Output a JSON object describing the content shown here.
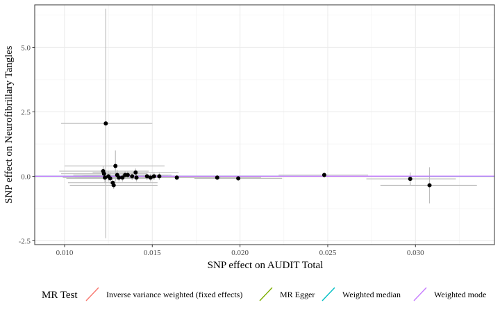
{
  "chart_data": {
    "type": "scatter",
    "xlabel": "SNP effect on AUDIT Total",
    "ylabel": "SNP effect on Neurofibrillary Tangles",
    "xlim": [
      0.0083,
      0.0345
    ],
    "ylim": [
      -2.65,
      6.65
    ],
    "x_ticks": [
      0.01,
      0.015,
      0.02,
      0.025,
      0.03
    ],
    "x_tick_labels": [
      "0.010",
      "0.015",
      "0.020",
      "0.025",
      "0.030"
    ],
    "y_ticks": [
      -2.5,
      0.0,
      2.5,
      5.0
    ],
    "y_tick_labels": [
      "-2.5",
      "0.0",
      "2.5",
      "5.0"
    ],
    "grid": true,
    "legend_position": "bottom",
    "legend_title": "MR Test",
    "points": [
      {
        "x": 0.01235,
        "y": 2.05,
        "x_lo": 0.0098,
        "x_hi": 0.015,
        "y_lo": -2.4,
        "y_hi": 6.5
      },
      {
        "x": 0.0129,
        "y": 0.4,
        "x_lo": 0.01,
        "x_hi": 0.0157,
        "y_lo": -0.2,
        "y_hi": 1.0
      },
      {
        "x": 0.0122,
        "y": 0.2,
        "x_lo": 0.0097,
        "x_hi": 0.0148,
        "y_lo": 0.0,
        "y_hi": 0.4
      },
      {
        "x": 0.01225,
        "y": 0.1,
        "x_lo": 0.0098,
        "x_hi": 0.0147,
        "y_lo": -0.1,
        "y_hi": 0.3
      },
      {
        "x": 0.0123,
        "y": -0.05,
        "x_lo": 0.0099,
        "x_hi": 0.0147,
        "y_lo": -0.25,
        "y_hi": 0.15
      },
      {
        "x": 0.0125,
        "y": 0.0,
        "x_lo": 0.01,
        "x_hi": 0.015,
        "y_lo": -0.2,
        "y_hi": 0.2
      },
      {
        "x": 0.0126,
        "y": -0.08,
        "x_lo": 0.0101,
        "x_hi": 0.0151,
        "y_lo": -0.3,
        "y_hi": 0.14
      },
      {
        "x": 0.01275,
        "y": -0.25,
        "x_lo": 0.0102,
        "x_hi": 0.0153,
        "y_lo": -0.4,
        "y_hi": -0.1
      },
      {
        "x": 0.0128,
        "y": -0.35,
        "x_lo": 0.0103,
        "x_hi": 0.0153,
        "y_lo": -0.5,
        "y_hi": -0.2
      },
      {
        "x": 0.013,
        "y": 0.05,
        "x_lo": 0.0105,
        "x_hi": 0.0155,
        "y_lo": -0.15,
        "y_hi": 0.25
      },
      {
        "x": 0.0131,
        "y": -0.05,
        "x_lo": 0.0106,
        "x_hi": 0.0156,
        "y_lo": -0.2,
        "y_hi": 0.1
      },
      {
        "x": 0.0133,
        "y": -0.05,
        "x_lo": 0.0108,
        "x_hi": 0.0158,
        "y_lo": -0.2,
        "y_hi": 0.1
      },
      {
        "x": 0.01345,
        "y": 0.05,
        "x_lo": 0.011,
        "x_hi": 0.0159,
        "y_lo": -0.1,
        "y_hi": 0.2
      },
      {
        "x": 0.0136,
        "y": 0.05,
        "x_lo": 0.0111,
        "x_hi": 0.0161,
        "y_lo": -0.1,
        "y_hi": 0.2
      },
      {
        "x": 0.01385,
        "y": 0.0,
        "x_lo": 0.0114,
        "x_hi": 0.0163,
        "y_lo": -0.15,
        "y_hi": 0.15
      },
      {
        "x": 0.01405,
        "y": 0.15,
        "x_lo": 0.0116,
        "x_hi": 0.0165,
        "y_lo": 0.0,
        "y_hi": 0.3
      },
      {
        "x": 0.0141,
        "y": -0.05,
        "x_lo": 0.0116,
        "x_hi": 0.0166,
        "y_lo": -0.2,
        "y_hi": 0.1
      },
      {
        "x": 0.0147,
        "y": 0.0,
        "x_lo": 0.0122,
        "x_hi": 0.0172,
        "y_lo": -0.15,
        "y_hi": 0.15
      },
      {
        "x": 0.0149,
        "y": -0.05,
        "x_lo": 0.0124,
        "x_hi": 0.0174,
        "y_lo": -0.2,
        "y_hi": 0.1
      },
      {
        "x": 0.0151,
        "y": 0.0,
        "x_lo": 0.0126,
        "x_hi": 0.0176,
        "y_lo": -0.15,
        "y_hi": 0.15
      },
      {
        "x": 0.0154,
        "y": 0.0,
        "x_lo": 0.0129,
        "x_hi": 0.0179,
        "y_lo": -0.15,
        "y_hi": 0.15
      },
      {
        "x": 0.0164,
        "y": -0.05,
        "x_lo": 0.0139,
        "x_hi": 0.0189,
        "y_lo": -0.15,
        "y_hi": 0.05
      },
      {
        "x": 0.0187,
        "y": -0.05,
        "x_lo": 0.0162,
        "x_hi": 0.0212,
        "y_lo": -0.15,
        "y_hi": 0.05
      },
      {
        "x": 0.0199,
        "y": -0.08,
        "x_lo": 0.0174,
        "x_hi": 0.0224,
        "y_lo": -0.18,
        "y_hi": 0.02
      },
      {
        "x": 0.0248,
        "y": 0.05,
        "x_lo": 0.0222,
        "x_hi": 0.0273,
        "y_lo": -0.05,
        "y_hi": 0.15
      },
      {
        "x": 0.0297,
        "y": -0.1,
        "x_lo": 0.0272,
        "x_hi": 0.0323,
        "y_lo": -0.35,
        "y_hi": 0.15
      },
      {
        "x": 0.0308,
        "y": -0.35,
        "x_lo": 0.028,
        "x_hi": 0.0335,
        "y_lo": -1.05,
        "y_hi": 0.35
      }
    ],
    "series": [
      {
        "name": "Inverse variance weighted (fixed effects)",
        "color": "#F8766D",
        "slope": 0.2
      },
      {
        "name": "MR Egger",
        "color": "#7CAE00",
        "slope": 0.0
      },
      {
        "name": "Weighted median",
        "color": "#00BFC4",
        "slope": 0.1
      },
      {
        "name": "Weighted mode",
        "color": "#C77CFF",
        "slope": 0.15
      }
    ]
  }
}
